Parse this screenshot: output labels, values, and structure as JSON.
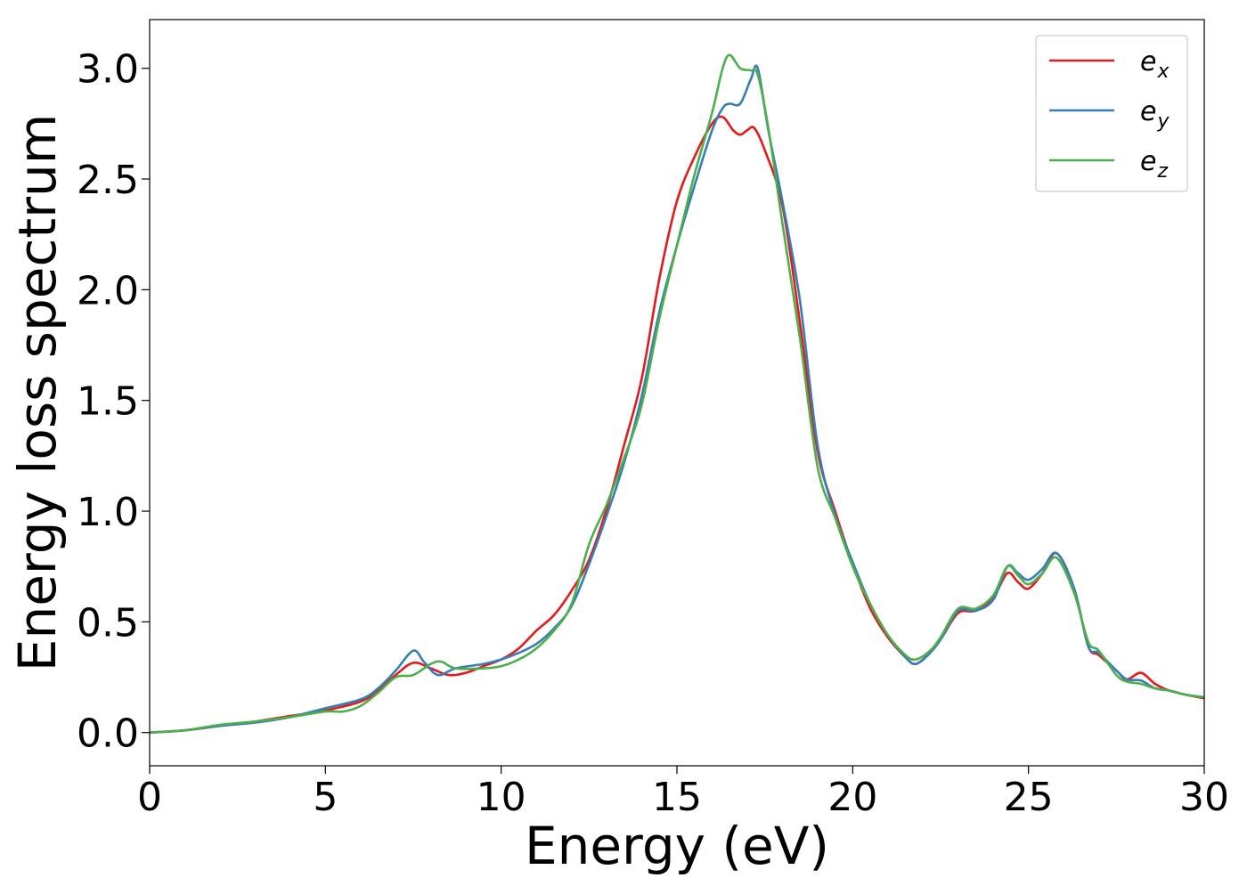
{
  "chart_data": {
    "type": "line",
    "title": "",
    "xlabel": "Energy (eV)",
    "ylabel": "Energy loss spectrum",
    "xlim": [
      0,
      30
    ],
    "ylim": [
      -0.15,
      3.22
    ],
    "xticks": [
      0,
      5,
      10,
      15,
      20,
      25,
      30
    ],
    "xtick_labels": [
      "0",
      "5",
      "10",
      "15",
      "20",
      "25",
      "30"
    ],
    "yticks": [
      0.0,
      0.5,
      1.0,
      1.5,
      2.0,
      2.5,
      3.0
    ],
    "ytick_labels": [
      "0.0",
      "0.5",
      "1.0",
      "1.5",
      "2.0",
      "2.5",
      "3.0"
    ],
    "grid": false,
    "legend_position": "top-right",
    "series": [
      {
        "name": "e_x",
        "label_main": "e",
        "label_sub": "x",
        "color": "#e41a1c",
        "points": [
          [
            0,
            0
          ],
          [
            1,
            0.01
          ],
          [
            2,
            0.03
          ],
          [
            3,
            0.05
          ],
          [
            4,
            0.075
          ],
          [
            5,
            0.1
          ],
          [
            6,
            0.14
          ],
          [
            6.5,
            0.19
          ],
          [
            7,
            0.26
          ],
          [
            7.5,
            0.315
          ],
          [
            8,
            0.29
          ],
          [
            8.5,
            0.26
          ],
          [
            9,
            0.27
          ],
          [
            9.5,
            0.3
          ],
          [
            10,
            0.33
          ],
          [
            10.5,
            0.38
          ],
          [
            11,
            0.46
          ],
          [
            11.5,
            0.53
          ],
          [
            12,
            0.64
          ],
          [
            12.5,
            0.78
          ],
          [
            13,
            1.01
          ],
          [
            13.5,
            1.3
          ],
          [
            14,
            1.6
          ],
          [
            14.5,
            2.05
          ],
          [
            15,
            2.4
          ],
          [
            15.5,
            2.6
          ],
          [
            16,
            2.75
          ],
          [
            16.3,
            2.78
          ],
          [
            16.6,
            2.72
          ],
          [
            16.8,
            2.7
          ],
          [
            17,
            2.72
          ],
          [
            17.2,
            2.73
          ],
          [
            17.5,
            2.63
          ],
          [
            18,
            2.38
          ],
          [
            18.5,
            1.85
          ],
          [
            19,
            1.27
          ],
          [
            19.5,
            1.0
          ],
          [
            20,
            0.76
          ],
          [
            20.5,
            0.56
          ],
          [
            21,
            0.43
          ],
          [
            21.5,
            0.34
          ],
          [
            21.8,
            0.31
          ],
          [
            22.2,
            0.36
          ],
          [
            22.5,
            0.42
          ],
          [
            23,
            0.54
          ],
          [
            23.5,
            0.55
          ],
          [
            24,
            0.61
          ],
          [
            24.4,
            0.72
          ],
          [
            24.7,
            0.68
          ],
          [
            25,
            0.65
          ],
          [
            25.4,
            0.72
          ],
          [
            25.8,
            0.81
          ],
          [
            26.3,
            0.65
          ],
          [
            26.7,
            0.39
          ],
          [
            27,
            0.35
          ],
          [
            27.5,
            0.28
          ],
          [
            27.8,
            0.24
          ],
          [
            28.2,
            0.27
          ],
          [
            28.6,
            0.22
          ],
          [
            29,
            0.19
          ],
          [
            29.5,
            0.17
          ],
          [
            30,
            0.155
          ]
        ]
      },
      {
        "name": "e_y",
        "label_main": "e",
        "label_sub": "y",
        "color": "#377eb8",
        "points": [
          [
            0,
            0
          ],
          [
            1,
            0.01
          ],
          [
            2,
            0.03
          ],
          [
            3,
            0.045
          ],
          [
            4,
            0.07
          ],
          [
            5,
            0.11
          ],
          [
            6,
            0.15
          ],
          [
            6.5,
            0.2
          ],
          [
            7,
            0.28
          ],
          [
            7.5,
            0.37
          ],
          [
            7.8,
            0.32
          ],
          [
            8.2,
            0.26
          ],
          [
            8.7,
            0.29
          ],
          [
            9.5,
            0.31
          ],
          [
            10,
            0.33
          ],
          [
            10.5,
            0.36
          ],
          [
            11,
            0.4
          ],
          [
            11.5,
            0.47
          ],
          [
            12,
            0.57
          ],
          [
            12.5,
            0.76
          ],
          [
            13,
            0.98
          ],
          [
            13.5,
            1.22
          ],
          [
            14,
            1.52
          ],
          [
            14.5,
            1.9
          ],
          [
            15,
            2.2
          ],
          [
            15.5,
            2.47
          ],
          [
            16,
            2.72
          ],
          [
            16.3,
            2.82
          ],
          [
            16.5,
            2.84
          ],
          [
            16.8,
            2.84
          ],
          [
            17.1,
            2.95
          ],
          [
            17.3,
            3.0
          ],
          [
            17.6,
            2.72
          ],
          [
            18,
            2.4
          ],
          [
            18.5,
            1.95
          ],
          [
            19,
            1.3
          ],
          [
            19.5,
            0.98
          ],
          [
            20,
            0.77
          ],
          [
            20.5,
            0.58
          ],
          [
            21,
            0.44
          ],
          [
            21.5,
            0.34
          ],
          [
            21.8,
            0.31
          ],
          [
            22.2,
            0.36
          ],
          [
            22.5,
            0.42
          ],
          [
            23,
            0.55
          ],
          [
            23.5,
            0.55
          ],
          [
            24,
            0.6
          ],
          [
            24.4,
            0.75
          ],
          [
            24.7,
            0.72
          ],
          [
            25,
            0.69
          ],
          [
            25.4,
            0.74
          ],
          [
            25.8,
            0.81
          ],
          [
            26.3,
            0.65
          ],
          [
            26.7,
            0.39
          ],
          [
            27,
            0.36
          ],
          [
            27.5,
            0.28
          ],
          [
            27.8,
            0.24
          ],
          [
            28.2,
            0.235
          ],
          [
            28.6,
            0.2
          ],
          [
            29,
            0.19
          ],
          [
            29.5,
            0.17
          ],
          [
            30,
            0.16
          ]
        ]
      },
      {
        "name": "e_z",
        "label_main": "e",
        "label_sub": "z",
        "color": "#4daf4a",
        "points": [
          [
            0,
            0
          ],
          [
            1,
            0.01
          ],
          [
            2,
            0.035
          ],
          [
            3,
            0.05
          ],
          [
            4,
            0.07
          ],
          [
            5,
            0.095
          ],
          [
            5.5,
            0.095
          ],
          [
            6,
            0.12
          ],
          [
            6.5,
            0.18
          ],
          [
            7,
            0.25
          ],
          [
            7.5,
            0.26
          ],
          [
            8,
            0.31
          ],
          [
            8.3,
            0.32
          ],
          [
            8.7,
            0.29
          ],
          [
            9.5,
            0.29
          ],
          [
            10,
            0.3
          ],
          [
            10.5,
            0.33
          ],
          [
            11,
            0.38
          ],
          [
            11.5,
            0.46
          ],
          [
            12,
            0.58
          ],
          [
            12.5,
            0.85
          ],
          [
            13,
            1.03
          ],
          [
            13.5,
            1.24
          ],
          [
            14,
            1.48
          ],
          [
            14.5,
            1.87
          ],
          [
            15,
            2.2
          ],
          [
            15.5,
            2.52
          ],
          [
            16,
            2.8
          ],
          [
            16.3,
            3.0
          ],
          [
            16.5,
            3.06
          ],
          [
            16.8,
            3.0
          ],
          [
            17.1,
            2.99
          ],
          [
            17.3,
            2.97
          ],
          [
            17.6,
            2.73
          ],
          [
            18,
            2.3
          ],
          [
            18.5,
            1.78
          ],
          [
            19,
            1.2
          ],
          [
            19.5,
            0.97
          ],
          [
            20,
            0.75
          ],
          [
            20.5,
            0.58
          ],
          [
            21,
            0.44
          ],
          [
            21.5,
            0.35
          ],
          [
            21.8,
            0.33
          ],
          [
            22.2,
            0.37
          ],
          [
            22.5,
            0.43
          ],
          [
            23,
            0.56
          ],
          [
            23.5,
            0.56
          ],
          [
            24,
            0.62
          ],
          [
            24.4,
            0.75
          ],
          [
            24.7,
            0.71
          ],
          [
            25,
            0.67
          ],
          [
            25.4,
            0.72
          ],
          [
            25.8,
            0.79
          ],
          [
            26.3,
            0.63
          ],
          [
            26.7,
            0.41
          ],
          [
            27,
            0.37
          ],
          [
            27.5,
            0.26
          ],
          [
            27.8,
            0.23
          ],
          [
            28.2,
            0.22
          ],
          [
            28.6,
            0.2
          ],
          [
            29,
            0.19
          ],
          [
            29.5,
            0.17
          ],
          [
            30,
            0.16
          ]
        ]
      }
    ]
  }
}
